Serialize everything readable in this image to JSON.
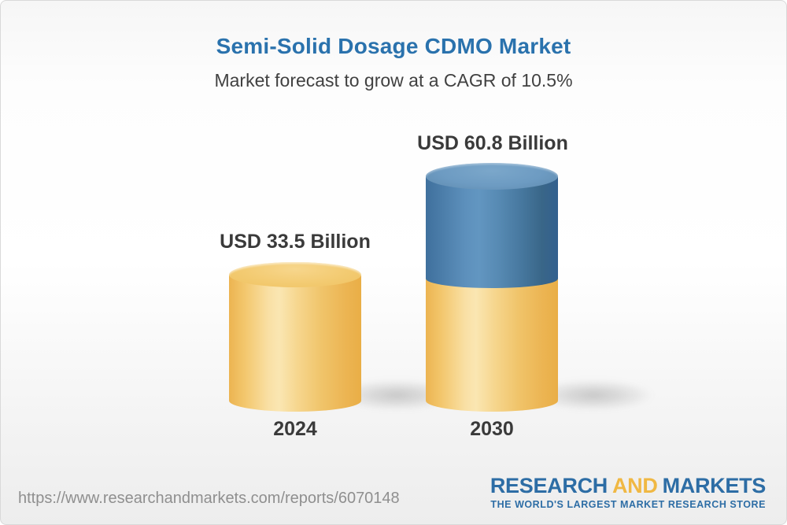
{
  "header": {
    "title": "Semi-Solid Dosage CDMO Market",
    "subtitle": "Market forecast to grow at a CAGR of 10.5%"
  },
  "chart_data": {
    "type": "bar",
    "variant": "3d-cylinder-infographic",
    "categories": [
      "2024",
      "2030"
    ],
    "values": [
      33.5,
      60.8
    ],
    "unit": "USD Billion",
    "value_labels": [
      "USD 33.5 Billion",
      "USD 60.8 Billion"
    ],
    "title": "Semi-Solid Dosage CDMO Market",
    "subtitle": "Market forecast to grow at a CAGR of 10.5%",
    "cagr_percent": 10.5,
    "legend": "none",
    "grid": false,
    "axes_visible": false,
    "bar_colors": {
      "base_gold": "#f0c46a",
      "growth_blue": "#5d90bc"
    },
    "notes": "2030 cylinder shows 2024 base in gold with incremental growth segment in blue stacked on top"
  },
  "footer": {
    "url": "https://www.researchandmarkets.com/reports/6070148",
    "logo": {
      "word1": "RESEARCH",
      "word2": "AND",
      "word3": "MARKETS",
      "tagline": "THE WORLD'S LARGEST MARKET RESEARCH STORE",
      "blue": "#2d6da5",
      "yellow": "#f0b843"
    }
  },
  "colors": {
    "title_blue": "#2a72ad",
    "text_dark": "#3a3a3a",
    "url_gray": "#8f8f8f",
    "background_top": "#f6f6f6",
    "background_bottom": "#ededed"
  }
}
